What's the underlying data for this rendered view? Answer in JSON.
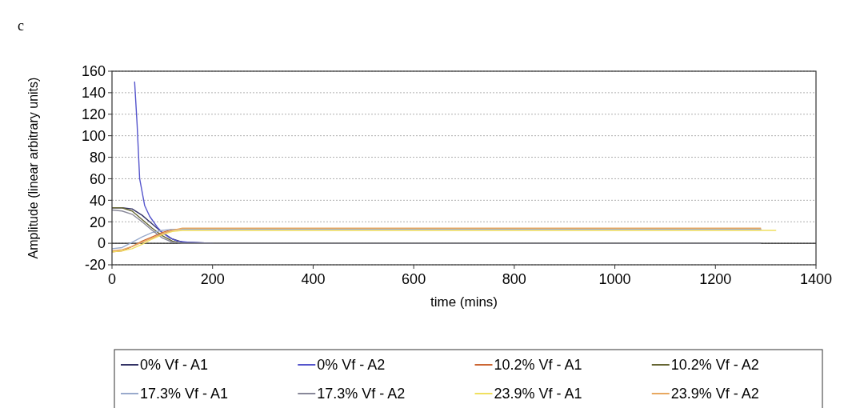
{
  "chart_data": {
    "type": "line",
    "title": "c",
    "xlabel": "time (mins)",
    "ylabel": "Amplitude (linear arbitrary units)",
    "xlim": [
      0,
      1400
    ],
    "xticks": [
      0,
      200,
      400,
      600,
      800,
      1000,
      1200,
      1400
    ],
    "ylim": [
      -20,
      160
    ],
    "yticks": [
      -20,
      0,
      20,
      40,
      60,
      80,
      100,
      120,
      140,
      160
    ],
    "grid": "y",
    "legend": "bottom",
    "line_style": "solid",
    "series": [
      {
        "name": "0% Vf - A1",
        "color": "#333366",
        "x": [
          0,
          20,
          40,
          60,
          80,
          100,
          120,
          140,
          200,
          400,
          800,
          1290
        ],
        "values": [
          33,
          33,
          32,
          26,
          18,
          10,
          4,
          1,
          0,
          0,
          0,
          0
        ]
      },
      {
        "name": "0% Vf - A2",
        "color": "#5555cc",
        "x": [
          45,
          50,
          55,
          65,
          75,
          90,
          100,
          115,
          130,
          150,
          200
        ],
        "values": [
          150,
          110,
          60,
          35,
          25,
          15,
          10,
          5,
          2,
          1,
          0
        ]
      },
      {
        "name": "10.2% Vf - A1",
        "color": "#cc6633",
        "x": [
          0,
          20,
          40,
          60,
          80,
          100,
          120,
          140,
          200,
          400,
          800,
          1290
        ],
        "values": [
          -8,
          -7,
          -3,
          2,
          6,
          10,
          13,
          13,
          13,
          13,
          13,
          13
        ]
      },
      {
        "name": "10.2% Vf - A2",
        "color": "#666633",
        "x": [
          0,
          20,
          40,
          60,
          80,
          100,
          120,
          140,
          200,
          400,
          800,
          1290
        ],
        "values": [
          33,
          33,
          30,
          22,
          14,
          7,
          2,
          0,
          0,
          0,
          0,
          0
        ]
      },
      {
        "name": "17.3% Vf - A1",
        "color": "#99aacc",
        "x": [
          0,
          20,
          40,
          60,
          80,
          100,
          120,
          140,
          200,
          400,
          800,
          1290
        ],
        "values": [
          -5,
          -4,
          1,
          6,
          10,
          12,
          13,
          13,
          13,
          13,
          13,
          13
        ]
      },
      {
        "name": "17.3% Vf - A2",
        "color": "#888899",
        "x": [
          0,
          20,
          40,
          60,
          80,
          100,
          120,
          140,
          200,
          400,
          800,
          1290
        ],
        "values": [
          31,
          30,
          27,
          20,
          12,
          5,
          1,
          0,
          0,
          0,
          0,
          0
        ]
      },
      {
        "name": "23.9% Vf - A1",
        "color": "#f0e060",
        "x": [
          0,
          20,
          40,
          60,
          80,
          100,
          120,
          140,
          200,
          400,
          800,
          1320
        ],
        "values": [
          -8,
          -7,
          -5,
          -1,
          4,
          8,
          11,
          12,
          12,
          12,
          12,
          12
        ]
      },
      {
        "name": "23.9% Vf - A2",
        "color": "#e8a860",
        "x": [
          0,
          20,
          40,
          60,
          80,
          100,
          120,
          140,
          200,
          400,
          800,
          1290
        ],
        "values": [
          -7,
          -6,
          -3,
          1,
          5,
          9,
          12,
          14,
          14,
          14,
          14,
          14
        ]
      }
    ]
  }
}
